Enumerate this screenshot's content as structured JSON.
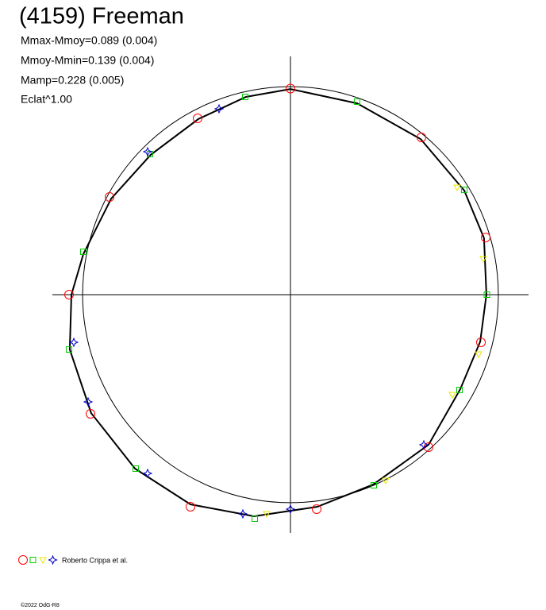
{
  "chart_data": {
    "type": "scatter",
    "title": "(4159) Freeman",
    "annotations": [
      "Mmax-Mmoy=0.089 (0.004)",
      "Mmoy-Mmin=0.139 (0.004)",
      "Mamp=0.228 (0.005)",
      "Eclat^1.00"
    ],
    "credit": "Roberto Crippa et al.",
    "footer": "©2022 OdG-R8",
    "xlim": [
      -1,
      1
    ],
    "ylim": [
      -1,
      1
    ],
    "circle_radius": 0.873,
    "curve": {
      "color": "#000000",
      "x": [
        0,
        0.28,
        0.547,
        0.73,
        0.813,
        0.823,
        0.797,
        0.713,
        0.58,
        0.347,
        0.113,
        -0.153,
        -0.42,
        -0.653,
        -0.837,
        -0.927,
        -0.92,
        -0.87,
        -0.753,
        -0.587,
        -0.387,
        -0.187,
        0
      ],
      "y": [
        0.863,
        0.803,
        0.653,
        0.437,
        0.237,
        0,
        -0.197,
        -0.397,
        -0.63,
        -0.797,
        -0.89,
        -0.93,
        -0.88,
        -0.73,
        -0.497,
        -0.23,
        0,
        0.17,
        0.403,
        0.587,
        0.737,
        0.83,
        0.863
      ]
    },
    "series": [
      {
        "color": "#ff0000",
        "marker": "circle",
        "x": [
          0,
          0.55,
          0.82,
          0.8,
          0.58,
          0.11,
          -0.42,
          -0.84,
          -0.93,
          -0.76,
          -0.39
        ],
        "y": [
          0.865,
          0.66,
          0.24,
          -0.2,
          -0.64,
          -0.9,
          -0.89,
          -0.5,
          0,
          0.41,
          0.74
        ]
      },
      {
        "color": "#00cc00",
        "marker": "square",
        "x": [
          0.28,
          0.73,
          0.825,
          0.71,
          0.35,
          -0.15,
          -0.65,
          -0.93,
          -0.87,
          -0.59,
          -0.19
        ],
        "y": [
          0.81,
          0.44,
          0,
          -0.4,
          -0.8,
          -0.94,
          -0.73,
          -0.23,
          0.18,
          0.59,
          0.83
        ]
      },
      {
        "color": "#e6e600",
        "marker": "triangle",
        "x": [
          0.7,
          0.81,
          0.79,
          0.68,
          0.4,
          -0.1
        ],
        "y": [
          0.45,
          0.15,
          -0.25,
          -0.42,
          -0.78,
          -0.92
        ]
      },
      {
        "color": "#0000cc",
        "marker": "star",
        "x": [
          0.56,
          0,
          -0.2,
          -0.6,
          -0.85,
          -0.91,
          -0.6,
          -0.3
        ],
        "y": [
          -0.63,
          -0.9,
          -0.92,
          -0.75,
          -0.45,
          -0.2,
          0.6,
          0.78
        ]
      }
    ]
  }
}
